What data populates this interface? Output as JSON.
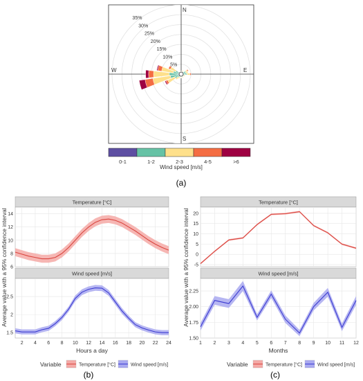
{
  "panel_labels": {
    "a": "(a)",
    "b": "(b)",
    "c": "(c)"
  },
  "colors": {
    "temperature": "#d9453f",
    "temperature_band": "#f4a9a6",
    "wind": "#3b3bd1",
    "wind_band": "#a9a9f0",
    "strip": "#d9d9d9",
    "panel_bg": "#ffffff",
    "grid": "#e6e6e6"
  },
  "chart_data": [
    {
      "id": "a",
      "type": "windrose",
      "directions": [
        "N",
        "E",
        "S",
        "W"
      ],
      "radial_ticks": [
        "5%",
        "10%",
        "15%",
        "20%",
        "25%",
        "30%",
        "35%"
      ],
      "radial_values": [
        5,
        10,
        15,
        20,
        25,
        30,
        35
      ],
      "legend": {
        "title": "Wind speed [m/s]",
        "labels": [
          "0-1",
          "1-2",
          "2-3",
          "4-5",
          ">6"
        ],
        "colors": [
          "#5e4fa2",
          "#66c2a5",
          "#fee08b",
          "#f46d43",
          "#9e0142"
        ]
      },
      "sectors": [
        {
          "angle": 270,
          "values": [
            1.5,
            4.5,
            8,
            2.5,
            1.5
          ]
        },
        {
          "angle": 255,
          "values": [
            1.5,
            4,
            9,
            4,
            3
          ]
        },
        {
          "angle": 285,
          "values": [
            1,
            3,
            6,
            2,
            0.5
          ]
        },
        {
          "angle": 240,
          "values": [
            1,
            2.5,
            4,
            1,
            0.5
          ]
        },
        {
          "angle": 300,
          "values": [
            1,
            2,
            3,
            1,
            0
          ]
        },
        {
          "angle": 60,
          "values": [
            1,
            1.5,
            1,
            0.5,
            0
          ]
        },
        {
          "angle": 90,
          "values": [
            1,
            2,
            1.5,
            0.5,
            0
          ]
        },
        {
          "angle": 75,
          "values": [
            1,
            1.5,
            1,
            0,
            0
          ]
        },
        {
          "angle": 105,
          "values": [
            0.5,
            1,
            0.5,
            0,
            0
          ]
        },
        {
          "angle": 120,
          "values": [
            0.5,
            1,
            0.5,
            0,
            0
          ]
        },
        {
          "angle": 210,
          "values": [
            0.5,
            1,
            1,
            0,
            0
          ]
        },
        {
          "angle": 225,
          "values": [
            0.5,
            1.5,
            1.5,
            0,
            0
          ]
        },
        {
          "angle": 180,
          "values": [
            0.5,
            1,
            0.5,
            0,
            0
          ]
        },
        {
          "angle": 0,
          "values": [
            0.5,
            0.5,
            0.5,
            0,
            0
          ]
        },
        {
          "angle": 30,
          "values": [
            0.5,
            1,
            0.5,
            0,
            0
          ]
        },
        {
          "angle": 150,
          "values": [
            0.5,
            1,
            0.5,
            0,
            0
          ]
        }
      ]
    },
    {
      "id": "b",
      "type": "line",
      "xlabel": "Hours a day",
      "ylabel": "Average value with a 95% confidence interval",
      "xlim": [
        1,
        24
      ],
      "x_ticks": [
        2,
        4,
        6,
        8,
        10,
        12,
        14,
        16,
        18,
        20,
        22,
        24
      ],
      "panels": [
        {
          "strip": "Temperature [°C]",
          "series_key": "temperature",
          "ylim": [
            6,
            15
          ],
          "y_ticks": [
            6,
            8,
            10,
            12,
            14
          ],
          "x": [
            1,
            2,
            3,
            4,
            5,
            6,
            7,
            8,
            9,
            10,
            11,
            12,
            13,
            14,
            15,
            16,
            17,
            18,
            19,
            20,
            21,
            22,
            23,
            24
          ],
          "mean": [
            8.2,
            7.9,
            7.6,
            7.4,
            7.2,
            7.2,
            7.4,
            8.0,
            8.9,
            10.0,
            11.1,
            12.0,
            12.7,
            13.1,
            13.2,
            13.0,
            12.6,
            12.0,
            11.4,
            10.7,
            10.0,
            9.4,
            8.9,
            8.5
          ],
          "lower": [
            7.6,
            7.3,
            7.0,
            6.8,
            6.6,
            6.6,
            6.8,
            7.4,
            8.3,
            9.4,
            10.5,
            11.4,
            12.1,
            12.5,
            12.6,
            12.4,
            12.0,
            11.4,
            10.8,
            10.1,
            9.4,
            8.8,
            8.3,
            7.9
          ],
          "upper": [
            8.8,
            8.5,
            8.2,
            8.0,
            7.8,
            7.8,
            8.0,
            8.6,
            9.5,
            10.6,
            11.7,
            12.6,
            13.3,
            13.7,
            13.8,
            13.6,
            13.2,
            12.6,
            12.0,
            11.3,
            10.6,
            10.0,
            9.5,
            9.1
          ]
        },
        {
          "strip": "Wind speed [m/s]",
          "series_key": "wind",
          "ylim": [
            1.35,
            3.0
          ],
          "y_ticks": [
            1.5,
            2.0,
            2.5
          ],
          "x": [
            1,
            2,
            3,
            4,
            5,
            6,
            7,
            8,
            9,
            10,
            11,
            12,
            13,
            14,
            15,
            16,
            17,
            18,
            19,
            20,
            21,
            22,
            23,
            24
          ],
          "mean": [
            1.55,
            1.52,
            1.52,
            1.52,
            1.58,
            1.62,
            1.75,
            1.92,
            2.15,
            2.45,
            2.62,
            2.7,
            2.74,
            2.73,
            2.6,
            2.35,
            2.1,
            1.9,
            1.72,
            1.63,
            1.57,
            1.52,
            1.5,
            1.5
          ],
          "lower": [
            1.48,
            1.45,
            1.45,
            1.45,
            1.51,
            1.55,
            1.68,
            1.85,
            2.08,
            2.37,
            2.54,
            2.62,
            2.66,
            2.65,
            2.52,
            2.27,
            2.02,
            1.83,
            1.65,
            1.56,
            1.5,
            1.45,
            1.43,
            1.43
          ],
          "upper": [
            1.62,
            1.59,
            1.59,
            1.59,
            1.65,
            1.69,
            1.82,
            1.99,
            2.22,
            2.53,
            2.7,
            2.78,
            2.82,
            2.81,
            2.68,
            2.43,
            2.18,
            1.97,
            1.79,
            1.7,
            1.64,
            1.59,
            1.57,
            1.57
          ]
        }
      ],
      "legend": {
        "title": "Variable",
        "entries": [
          "Temperature [°C]",
          "Wind speed [m/s]"
        ]
      }
    },
    {
      "id": "c",
      "type": "line",
      "xlabel": "Months",
      "ylabel": "Average value with a 95% confidence interval",
      "xlim": [
        1,
        12
      ],
      "x_ticks": [
        1,
        2,
        3,
        4,
        5,
        6,
        7,
        8,
        9,
        10,
        11,
        12
      ],
      "panels": [
        {
          "strip": "Temperature [°C]",
          "series_key": "temperature",
          "ylim": [
            -6,
            23
          ],
          "y_ticks": [
            -5,
            0,
            5,
            10,
            15,
            20
          ],
          "x": [
            1,
            2,
            3,
            4,
            5,
            6,
            7,
            8,
            9,
            10,
            11,
            12
          ],
          "mean": [
            -4.5,
            1.5,
            7.0,
            8.0,
            14.5,
            19.5,
            19.8,
            20.8,
            14.0,
            10.5,
            5.0,
            3.0
          ],
          "lower": [
            -4.9,
            1.1,
            6.6,
            7.6,
            14.1,
            19.1,
            19.4,
            20.4,
            13.6,
            10.1,
            4.6,
            2.6
          ],
          "upper": [
            -4.1,
            1.9,
            7.4,
            8.4,
            14.9,
            19.9,
            20.2,
            21.2,
            14.4,
            10.9,
            5.4,
            3.4
          ]
        },
        {
          "strip": "Wind speed [m/s]",
          "series_key": "wind",
          "ylim": [
            1.5,
            2.45
          ],
          "y_ticks": [
            1.5,
            1.75,
            2.0,
            2.25
          ],
          "x": [
            1,
            2,
            3,
            4,
            5,
            6,
            7,
            8,
            9,
            10,
            11,
            12
          ],
          "mean": [
            1.68,
            2.1,
            2.05,
            2.33,
            1.83,
            2.2,
            1.8,
            1.58,
            2.0,
            2.23,
            1.67,
            2.1
          ],
          "lower": [
            1.62,
            2.03,
            1.98,
            2.25,
            1.78,
            2.14,
            1.74,
            1.53,
            1.94,
            2.16,
            1.61,
            2.03
          ],
          "upper": [
            1.74,
            2.17,
            2.12,
            2.41,
            1.88,
            2.26,
            1.86,
            1.63,
            2.06,
            2.3,
            1.73,
            2.17
          ]
        }
      ],
      "legend": {
        "title": "Variable",
        "entries": [
          "Temperature [°C]",
          "Wind speed [m/s]"
        ]
      }
    }
  ]
}
